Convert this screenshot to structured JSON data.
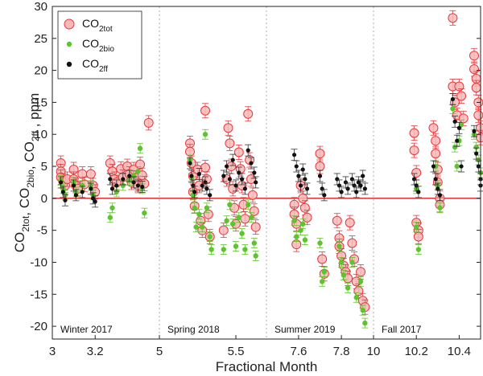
{
  "chart_data": {
    "type": "scatter",
    "xlabel": "Fractional Month",
    "ylabel": {
      "parts": [
        {
          "t": "CO",
          "sub": "2tot"
        },
        {
          "t": ", CO",
          "sub": "2bio"
        },
        {
          "t": ", CO",
          "sub": "2ff"
        },
        {
          "t": " , ppm",
          "sub": ""
        }
      ]
    },
    "ylim": [
      -22,
      30
    ],
    "yticks": [
      -20,
      -15,
      -10,
      -5,
      0,
      5,
      10,
      15,
      20,
      25,
      30
    ],
    "xticks": [
      "3",
      "3.2",
      "5",
      "5.5",
      "7.6",
      "7.8",
      "10",
      "10.2",
      "10.4"
    ],
    "panels": [
      {
        "name": "Winter 2017",
        "xmin": 3.0,
        "xmax": 3.5
      },
      {
        "name": "Spring 2018",
        "xmin": 5.0,
        "xmax": 5.7
      },
      {
        "name": "Summer 2019",
        "xmin": 7.45,
        "xmax": 7.95
      },
      {
        "name": "Fall 2017",
        "xmin": 10.0,
        "xmax": 10.5
      }
    ],
    "legend": {
      "position": "top-left",
      "entries": [
        {
          "t": "CO",
          "sub": "2tot",
          "color": "#e8383d",
          "marker": "circle-open"
        },
        {
          "t": "CO",
          "sub": "2bio",
          "color": "#5ec42e",
          "marker": "dot"
        },
        {
          "t": "CO",
          "sub": "2ff",
          "color": "#111111",
          "marker": "dot"
        }
      ]
    },
    "zero_line_color": "#e8383d",
    "series": [
      {
        "name": "CO2tot",
        "color": "#e8383d",
        "points": [
          [
            3.04,
            5.5
          ],
          [
            3.04,
            4.2
          ],
          [
            3.04,
            3.3
          ],
          [
            3.05,
            2.7
          ],
          [
            3.06,
            2.0
          ],
          [
            3.07,
            3.0
          ],
          [
            3.1,
            4.5
          ],
          [
            3.1,
            3.0
          ],
          [
            3.11,
            2.0
          ],
          [
            3.12,
            1.5
          ],
          [
            3.14,
            3.8
          ],
          [
            3.15,
            2.2
          ],
          [
            3.18,
            3.8
          ],
          [
            3.19,
            2.0
          ],
          [
            3.2,
            1.0
          ],
          [
            3.27,
            5.5
          ],
          [
            3.28,
            4.2
          ],
          [
            3.29,
            3.0
          ],
          [
            3.3,
            2.5
          ],
          [
            3.32,
            4.6
          ],
          [
            3.33,
            3.3
          ],
          [
            3.35,
            5.0
          ],
          [
            3.36,
            3.8
          ],
          [
            3.37,
            2.5
          ],
          [
            3.38,
            4.5
          ],
          [
            3.39,
            3.2
          ],
          [
            3.4,
            2.0
          ],
          [
            3.41,
            5.3
          ],
          [
            3.42,
            3.6
          ],
          [
            3.43,
            2.3
          ],
          [
            3.45,
            11.8
          ],
          [
            5.2,
            8.6
          ],
          [
            5.2,
            7.3
          ],
          [
            5.21,
            5.5
          ],
          [
            5.22,
            3.5
          ],
          [
            5.22,
            1.0
          ],
          [
            5.23,
            -1.2
          ],
          [
            5.25,
            4.5
          ],
          [
            5.26,
            2.0
          ],
          [
            5.27,
            -3.5
          ],
          [
            5.28,
            -5.0
          ],
          [
            5.3,
            13.7
          ],
          [
            5.3,
            4.8
          ],
          [
            5.31,
            3.0
          ],
          [
            5.32,
            -2.5
          ],
          [
            5.33,
            -6.0
          ],
          [
            5.42,
            -5.0
          ],
          [
            5.44,
            3.0
          ],
          [
            5.45,
            11.0
          ],
          [
            5.46,
            8.6
          ],
          [
            5.47,
            5.0
          ],
          [
            5.48,
            1.5
          ],
          [
            5.49,
            -1.5
          ],
          [
            5.5,
            -4.0
          ],
          [
            5.52,
            7.2
          ],
          [
            5.53,
            4.6
          ],
          [
            5.54,
            2.0
          ],
          [
            5.55,
            -1.0
          ],
          [
            5.56,
            -3.2
          ],
          [
            5.58,
            13.2
          ],
          [
            5.59,
            6.0
          ],
          [
            5.6,
            3.0
          ],
          [
            5.61,
            0.5
          ],
          [
            5.62,
            -2.0
          ],
          [
            5.63,
            -4.5
          ],
          [
            7.58,
            -1.0
          ],
          [
            7.58,
            -2.5
          ],
          [
            7.59,
            -4.0
          ],
          [
            7.59,
            -7.2
          ],
          [
            7.61,
            2.0
          ],
          [
            7.62,
            0.0
          ],
          [
            7.63,
            -1.5
          ],
          [
            7.64,
            -3.0
          ],
          [
            7.7,
            7.0
          ],
          [
            7.7,
            5.0
          ],
          [
            7.71,
            -9.5
          ],
          [
            7.72,
            -11.8
          ],
          [
            7.78,
            -3.5
          ],
          [
            7.79,
            -6.2
          ],
          [
            7.79,
            -7.5
          ],
          [
            7.8,
            -9.0
          ],
          [
            7.81,
            -10.5
          ],
          [
            7.82,
            -11.5
          ],
          [
            7.83,
            -12.5
          ],
          [
            7.84,
            -3.8
          ],
          [
            7.85,
            -7.0
          ],
          [
            7.86,
            -9.5
          ],
          [
            7.87,
            -13.0
          ],
          [
            7.88,
            -14.5
          ],
          [
            7.89,
            -11.5
          ],
          [
            7.9,
            -16.0
          ],
          [
            7.91,
            -17.0
          ],
          [
            10.19,
            10.2
          ],
          [
            10.19,
            7.5
          ],
          [
            10.2,
            4.0
          ],
          [
            10.2,
            -3.8
          ],
          [
            10.21,
            -5.0
          ],
          [
            10.21,
            -6.0
          ],
          [
            10.28,
            11.0
          ],
          [
            10.29,
            9.0
          ],
          [
            10.29,
            7.0
          ],
          [
            10.3,
            4.5
          ],
          [
            10.3,
            2.5
          ],
          [
            10.31,
            0.0
          ],
          [
            10.31,
            -1.0
          ],
          [
            10.37,
            28.2
          ],
          [
            10.37,
            17.5
          ],
          [
            10.38,
            15.0
          ],
          [
            10.39,
            13.0
          ],
          [
            10.4,
            17.5
          ],
          [
            10.41,
            16.0
          ],
          [
            10.42,
            12.5
          ],
          [
            10.47,
            22.3
          ],
          [
            10.47,
            20.2
          ],
          [
            10.48,
            18.7
          ],
          [
            10.48,
            17.3
          ],
          [
            10.49,
            15.0
          ],
          [
            10.49,
            13.0
          ],
          [
            10.5,
            11.0
          ],
          [
            10.5,
            9.5
          ]
        ]
      },
      {
        "name": "CO2bio",
        "color": "#5ec42e",
        "points": [
          [
            3.04,
            2.8
          ],
          [
            3.05,
            1.5
          ],
          [
            3.06,
            0.5
          ],
          [
            3.1,
            2.5
          ],
          [
            3.11,
            1.0
          ],
          [
            3.14,
            2.0
          ],
          [
            3.18,
            2.0
          ],
          [
            3.19,
            0.5
          ],
          [
            3.27,
            -3.0
          ],
          [
            3.28,
            -1.5
          ],
          [
            3.3,
            1.0
          ],
          [
            3.33,
            2.0
          ],
          [
            3.36,
            2.8
          ],
          [
            3.38,
            3.5
          ],
          [
            3.4,
            4.2
          ],
          [
            3.41,
            7.8
          ],
          [
            3.42,
            1.5
          ],
          [
            3.43,
            -2.3
          ],
          [
            5.2,
            6.0
          ],
          [
            5.21,
            3.2
          ],
          [
            5.22,
            0.5
          ],
          [
            5.23,
            -1.5
          ],
          [
            5.24,
            -4.5
          ],
          [
            5.26,
            -2.5
          ],
          [
            5.28,
            -4.5
          ],
          [
            5.3,
            10.0
          ],
          [
            5.31,
            -1.5
          ],
          [
            5.33,
            -6.0
          ],
          [
            5.34,
            -8.0
          ],
          [
            5.42,
            -8.0
          ],
          [
            5.44,
            -3.5
          ],
          [
            5.46,
            -1.0
          ],
          [
            5.48,
            -4.0
          ],
          [
            5.5,
            -7.5
          ],
          [
            5.52,
            -3.0
          ],
          [
            5.54,
            -5.5
          ],
          [
            5.56,
            -8.0
          ],
          [
            5.58,
            -1.0
          ],
          [
            5.6,
            -3.0
          ],
          [
            5.62,
            -7.0
          ],
          [
            5.63,
            -9.0
          ],
          [
            7.58,
            -3.5
          ],
          [
            7.59,
            -6.0
          ],
          [
            7.61,
            -5.0
          ],
          [
            7.62,
            -4.0
          ],
          [
            7.63,
            -6.5
          ],
          [
            7.7,
            -7.0
          ],
          [
            7.71,
            -13.0
          ],
          [
            7.72,
            -11.5
          ],
          [
            7.79,
            -7.5
          ],
          [
            7.8,
            -10.0
          ],
          [
            7.81,
            -12.0
          ],
          [
            7.83,
            -14.0
          ],
          [
            7.85,
            -10.0
          ],
          [
            7.87,
            -15.5
          ],
          [
            7.89,
            -13.0
          ],
          [
            7.9,
            -17.5
          ],
          [
            7.91,
            -19.5
          ],
          [
            10.2,
            1.5
          ],
          [
            10.2,
            -4.5
          ],
          [
            10.21,
            -8.0
          ],
          [
            10.29,
            5.0
          ],
          [
            10.3,
            2.0
          ],
          [
            10.31,
            -1.5
          ],
          [
            10.37,
            14.0
          ],
          [
            10.38,
            8.0
          ],
          [
            10.39,
            5.0
          ],
          [
            10.4,
            9.0
          ],
          [
            10.41,
            11.5
          ],
          [
            10.47,
            10.0
          ],
          [
            10.48,
            8.0
          ],
          [
            10.49,
            6.0
          ],
          [
            10.5,
            4.0
          ]
        ]
      },
      {
        "name": "CO2ff",
        "color": "#111111",
        "points": [
          [
            3.04,
            2.5
          ],
          [
            3.05,
            1.0
          ],
          [
            3.06,
            -0.3
          ],
          [
            3.1,
            2.0
          ],
          [
            3.11,
            0.5
          ],
          [
            3.14,
            1.0
          ],
          [
            3.18,
            1.5
          ],
          [
            3.19,
            0.0
          ],
          [
            3.2,
            -0.5
          ],
          [
            3.27,
            3.0
          ],
          [
            3.28,
            1.5
          ],
          [
            3.3,
            2.0
          ],
          [
            3.33,
            3.0
          ],
          [
            3.36,
            3.5
          ],
          [
            3.38,
            2.5
          ],
          [
            3.4,
            2.0
          ],
          [
            3.42,
            1.8
          ],
          [
            5.2,
            5.5
          ],
          [
            5.21,
            3.5
          ],
          [
            5.22,
            2.0
          ],
          [
            5.23,
            1.0
          ],
          [
            5.26,
            3.8
          ],
          [
            5.28,
            2.0
          ],
          [
            5.3,
            2.5
          ],
          [
            5.31,
            1.5
          ],
          [
            5.33,
            0.5
          ],
          [
            5.42,
            3.5
          ],
          [
            5.44,
            5.0
          ],
          [
            5.46,
            3.0
          ],
          [
            5.48,
            6.0
          ],
          [
            5.5,
            2.0
          ],
          [
            5.52,
            4.0
          ],
          [
            5.54,
            3.0
          ],
          [
            5.56,
            1.5
          ],
          [
            5.58,
            7.5
          ],
          [
            5.6,
            5.5
          ],
          [
            5.62,
            4.0
          ],
          [
            5.63,
            2.5
          ],
          [
            7.58,
            6.8
          ],
          [
            7.59,
            5.0
          ],
          [
            7.6,
            3.5
          ],
          [
            7.61,
            2.0
          ],
          [
            7.62,
            4.5
          ],
          [
            7.63,
            3.0
          ],
          [
            7.64,
            1.5
          ],
          [
            7.7,
            3.5
          ],
          [
            7.71,
            1.5
          ],
          [
            7.72,
            0.5
          ],
          [
            7.78,
            3.0
          ],
          [
            7.79,
            2.0
          ],
          [
            7.8,
            1.0
          ],
          [
            7.82,
            2.5
          ],
          [
            7.83,
            1.5
          ],
          [
            7.85,
            3.0
          ],
          [
            7.86,
            2.0
          ],
          [
            7.87,
            1.0
          ],
          [
            7.88,
            2.5
          ],
          [
            7.89,
            2.0
          ],
          [
            7.9,
            3.5
          ],
          [
            7.91,
            1.5
          ],
          [
            10.19,
            3.0
          ],
          [
            10.2,
            2.0
          ],
          [
            10.21,
            1.0
          ],
          [
            10.28,
            5.0
          ],
          [
            10.29,
            3.0
          ],
          [
            10.3,
            1.5
          ],
          [
            10.31,
            0.5
          ],
          [
            10.37,
            15.5
          ],
          [
            10.38,
            12.0
          ],
          [
            10.39,
            9.0
          ],
          [
            10.4,
            11.0
          ],
          [
            10.41,
            5.0
          ],
          [
            10.47,
            10.5
          ],
          [
            10.48,
            7.0
          ],
          [
            10.49,
            5.0
          ],
          [
            10.5,
            3.0
          ],
          [
            10.5,
            2.0
          ]
        ]
      }
    ]
  }
}
